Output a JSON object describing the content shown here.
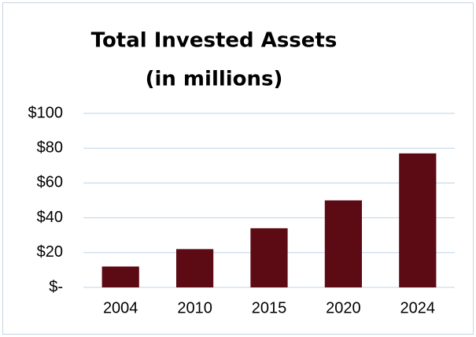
{
  "chart_data": {
    "type": "bar",
    "title": "Total Invested Assets",
    "subtitle": "(in millions)",
    "categories": [
      "2004",
      "2010",
      "2015",
      "2020",
      "2024"
    ],
    "values": [
      12,
      22,
      34,
      50,
      77
    ],
    "color": "#5c0a14",
    "ylim": [
      0,
      100
    ],
    "yticks": [
      {
        "value": 0,
        "label": "$-"
      },
      {
        "value": 20,
        "label": "$20"
      },
      {
        "value": 40,
        "label": "$40"
      },
      {
        "value": 60,
        "label": "$60"
      },
      {
        "value": 80,
        "label": "$80"
      },
      {
        "value": 100,
        "label": "$100"
      }
    ],
    "grid": true
  }
}
